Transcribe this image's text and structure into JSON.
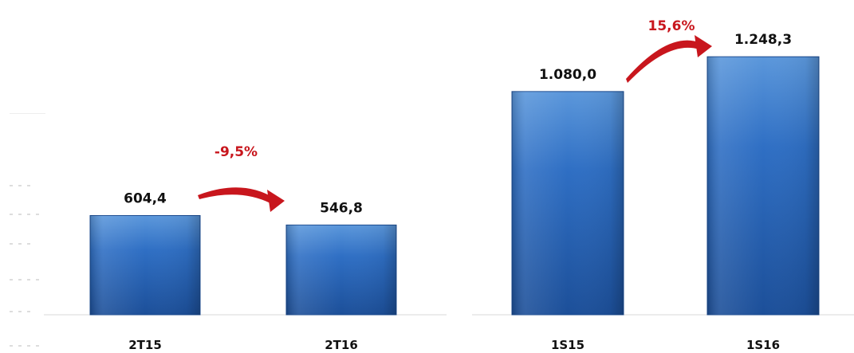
{
  "colors": {
    "bar_top": "#5b97db",
    "bar_mid": "#2f6fc4",
    "bar_bottom": "#1c4f99",
    "bar_edge": "#1a4a8f",
    "arrow": "#c8161d",
    "change_text": "#c8161d",
    "label_text": "#111111",
    "axis_line": "#d8d8d8",
    "faint_tick": "#dddddd"
  },
  "chart_data": [
    {
      "type": "bar",
      "categories": [
        "2T15",
        "2T16"
      ],
      "values": [
        604.4,
        546.8
      ],
      "value_labels": [
        "604,4",
        "546,8"
      ],
      "change_label": "-9,5%",
      "ylim": [
        0,
        1400
      ],
      "grid": false,
      "legend": "none"
    },
    {
      "type": "bar",
      "categories": [
        "1S15",
        "1S16"
      ],
      "values": [
        1080.0,
        1248.3
      ],
      "value_labels": [
        "1.080,0",
        "1.248,3"
      ],
      "change_label": "15,6%",
      "ylim": [
        0,
        1400
      ],
      "grid": false,
      "legend": "none"
    }
  ]
}
